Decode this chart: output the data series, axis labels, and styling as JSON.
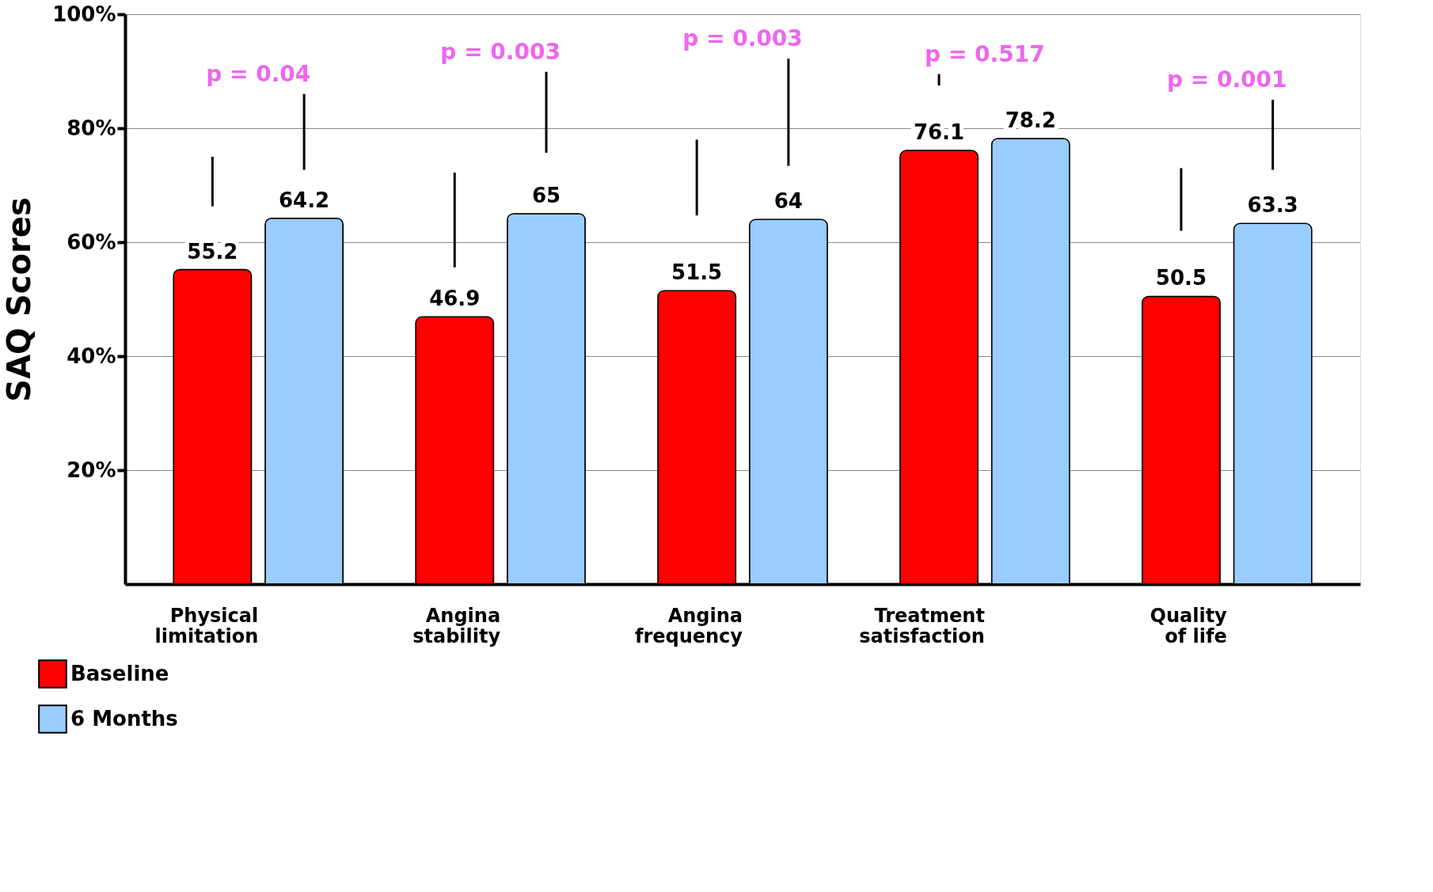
{
  "chart_data": {
    "type": "bar",
    "ylabel": "SAQ Scores",
    "categories": [
      "Physical\nlimitation",
      "Angina\nstability",
      "Angina\nfrequency",
      "Treatment\nsatisfaction",
      "Quality\nof life"
    ],
    "series": [
      {
        "name": "Baseline",
        "color": "#ff0000",
        "values": [
          55.2,
          46.9,
          51.5,
          76.1,
          50.5
        ],
        "errors": [
          [
            66.3,
            75
          ],
          [
            55.6,
            72.2
          ],
          [
            64.7,
            78
          ],
          [
            87.5,
            89.5
          ],
          [
            62,
            73
          ]
        ]
      },
      {
        "name": "6 Months",
        "color": "#99ccff",
        "values": [
          64.2,
          65.0,
          64.0,
          78.2,
          63.3
        ],
        "errors": [
          [
            72.7,
            86
          ],
          [
            75.7,
            89.9
          ],
          [
            73.4,
            92.2
          ],
          null,
          [
            72.7,
            85
          ]
        ]
      }
    ],
    "ylim": [
      0,
      100
    ],
    "yticks": [
      {
        "value": 20,
        "label": "20%"
      },
      {
        "value": 40,
        "label": "40%"
      },
      {
        "value": 60,
        "label": "60%"
      },
      {
        "value": 80,
        "label": "80%"
      },
      {
        "value": 100,
        "label": "100%"
      }
    ],
    "grid": "y",
    "legend": "bottom left",
    "data_labels": true,
    "annotations": [
      "p = 0.04",
      "p = 0.003",
      "p = 0.003",
      "p = 0.517",
      "p = 0.001"
    ]
  }
}
